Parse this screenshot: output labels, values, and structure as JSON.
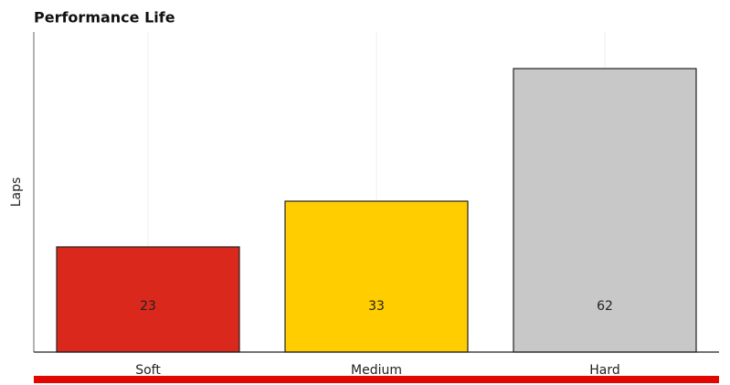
{
  "chart_data": {
    "type": "bar",
    "title": "Performance Life",
    "y_label": "Laps",
    "categories": [
      "Soft",
      "Medium",
      "Hard"
    ],
    "values": [
      23,
      33,
      62
    ],
    "colors": [
      "#da291c",
      "#ffcd00",
      "#c8c8c8"
    ],
    "ylim": [
      0,
      70
    ],
    "grid": true
  }
}
